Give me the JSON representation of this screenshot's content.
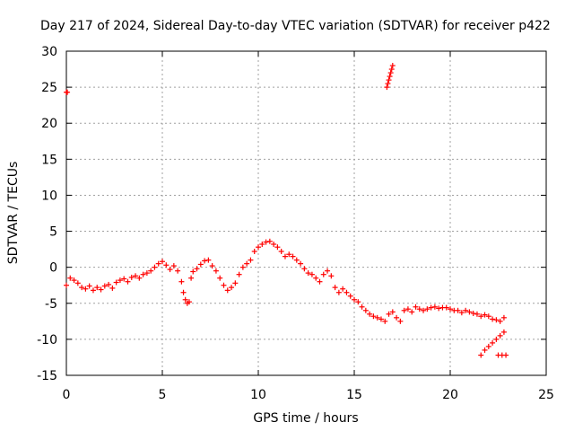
{
  "chart_data": {
    "type": "scatter",
    "title": "Day 217 of 2024, Sidereal Day-to-day VTEC variation (SDTVAR) for receiver p422",
    "xlabel": "GPS time / hours",
    "ylabel": "SDTVAR / TECUs",
    "xlim": [
      0,
      25
    ],
    "ylim": [
      -15,
      30
    ],
    "xticks": [
      0,
      5,
      10,
      15,
      20,
      25
    ],
    "yticks": [
      -15,
      -10,
      -5,
      0,
      5,
      10,
      15,
      20,
      25,
      30
    ],
    "grid": true,
    "marker": "+",
    "color": "#ff0000",
    "series": [
      {
        "name": "SDTVAR",
        "points": [
          [
            0.0,
            24.3
          ],
          [
            0.05,
            24.3
          ],
          [
            16.7,
            25.0
          ],
          [
            16.75,
            25.5
          ],
          [
            16.8,
            26.0
          ],
          [
            16.85,
            26.5
          ],
          [
            16.9,
            27.0
          ],
          [
            16.95,
            27.5
          ],
          [
            17.0,
            28.0
          ],
          [
            0.0,
            -2.5
          ],
          [
            0.2,
            -1.5
          ],
          [
            0.4,
            -1.8
          ],
          [
            0.6,
            -2.2
          ],
          [
            0.8,
            -2.8
          ],
          [
            1.0,
            -3.0
          ],
          [
            1.2,
            -2.6
          ],
          [
            1.4,
            -3.2
          ],
          [
            1.6,
            -2.8
          ],
          [
            1.8,
            -3.1
          ],
          [
            2.0,
            -2.6
          ],
          [
            2.2,
            -2.4
          ],
          [
            2.4,
            -2.9
          ],
          [
            2.6,
            -2.1
          ],
          [
            2.8,
            -1.8
          ],
          [
            3.0,
            -1.6
          ],
          [
            3.2,
            -2.0
          ],
          [
            3.4,
            -1.4
          ],
          [
            3.6,
            -1.2
          ],
          [
            3.8,
            -1.5
          ],
          [
            4.0,
            -1.0
          ],
          [
            4.2,
            -0.8
          ],
          [
            4.4,
            -0.5
          ],
          [
            4.6,
            0.0
          ],
          [
            4.8,
            0.5
          ],
          [
            5.0,
            0.8
          ],
          [
            5.2,
            0.3
          ],
          [
            5.4,
            -0.3
          ],
          [
            5.6,
            0.2
          ],
          [
            5.8,
            -0.5
          ],
          [
            6.0,
            -2.0
          ],
          [
            6.1,
            -3.5
          ],
          [
            6.2,
            -4.5
          ],
          [
            6.3,
            -5.0
          ],
          [
            6.4,
            -4.8
          ],
          [
            6.5,
            -1.5
          ],
          [
            6.6,
            -0.6
          ],
          [
            6.8,
            -0.2
          ],
          [
            7.0,
            0.4
          ],
          [
            7.2,
            0.9
          ],
          [
            7.4,
            1.0
          ],
          [
            7.6,
            0.2
          ],
          [
            7.8,
            -0.5
          ],
          [
            8.0,
            -1.5
          ],
          [
            8.2,
            -2.5
          ],
          [
            8.4,
            -3.2
          ],
          [
            8.6,
            -2.8
          ],
          [
            8.8,
            -2.2
          ],
          [
            9.0,
            -1.0
          ],
          [
            9.2,
            0.0
          ],
          [
            9.4,
            0.5
          ],
          [
            9.6,
            1.0
          ],
          [
            9.8,
            2.2
          ],
          [
            10.0,
            2.8
          ],
          [
            10.2,
            3.2
          ],
          [
            10.4,
            3.5
          ],
          [
            10.6,
            3.6
          ],
          [
            10.8,
            3.2
          ],
          [
            11.0,
            2.8
          ],
          [
            11.2,
            2.2
          ],
          [
            11.4,
            1.5
          ],
          [
            11.6,
            1.8
          ],
          [
            11.8,
            1.5
          ],
          [
            12.0,
            1.0
          ],
          [
            12.2,
            0.5
          ],
          [
            12.4,
            -0.2
          ],
          [
            12.6,
            -0.8
          ],
          [
            12.8,
            -1.0
          ],
          [
            13.0,
            -1.5
          ],
          [
            13.2,
            -2.0
          ],
          [
            13.4,
            -1.0
          ],
          [
            13.6,
            -0.5
          ],
          [
            13.8,
            -1.2
          ],
          [
            14.0,
            -2.8
          ],
          [
            14.2,
            -3.5
          ],
          [
            14.4,
            -3.0
          ],
          [
            14.6,
            -3.5
          ],
          [
            14.8,
            -4.0
          ],
          [
            15.0,
            -4.5
          ],
          [
            15.2,
            -4.8
          ],
          [
            15.4,
            -5.5
          ],
          [
            15.6,
            -6.0
          ],
          [
            15.8,
            -6.5
          ],
          [
            16.0,
            -6.8
          ],
          [
            16.2,
            -7.0
          ],
          [
            16.4,
            -7.2
          ],
          [
            16.6,
            -7.5
          ],
          [
            16.8,
            -6.5
          ],
          [
            17.0,
            -6.2
          ],
          [
            17.2,
            -7.0
          ],
          [
            17.4,
            -7.5
          ],
          [
            17.6,
            -6.0
          ],
          [
            17.8,
            -5.8
          ],
          [
            18.0,
            -6.2
          ],
          [
            18.2,
            -5.5
          ],
          [
            18.4,
            -5.8
          ],
          [
            18.6,
            -6.0
          ],
          [
            18.8,
            -5.8
          ],
          [
            19.0,
            -5.6
          ],
          [
            19.2,
            -5.5
          ],
          [
            19.4,
            -5.7
          ],
          [
            19.6,
            -5.6
          ],
          [
            19.8,
            -5.6
          ],
          [
            20.0,
            -5.8
          ],
          [
            20.2,
            -6.0
          ],
          [
            20.4,
            -6.0
          ],
          [
            20.6,
            -6.3
          ],
          [
            20.8,
            -6.0
          ],
          [
            21.0,
            -6.2
          ],
          [
            21.2,
            -6.4
          ],
          [
            21.4,
            -6.5
          ],
          [
            21.6,
            -6.8
          ],
          [
            21.8,
            -6.6
          ],
          [
            22.0,
            -6.8
          ],
          [
            22.2,
            -7.2
          ],
          [
            22.4,
            -7.3
          ],
          [
            22.6,
            -7.5
          ],
          [
            22.8,
            -7.0
          ],
          [
            21.6,
            -12.2
          ],
          [
            21.8,
            -11.5
          ],
          [
            22.0,
            -11.0
          ],
          [
            22.2,
            -10.5
          ],
          [
            22.4,
            -10.0
          ],
          [
            22.6,
            -9.5
          ],
          [
            22.8,
            -9.0
          ],
          [
            22.5,
            -12.2
          ],
          [
            22.7,
            -12.2
          ],
          [
            22.9,
            -12.2
          ]
        ]
      }
    ]
  }
}
